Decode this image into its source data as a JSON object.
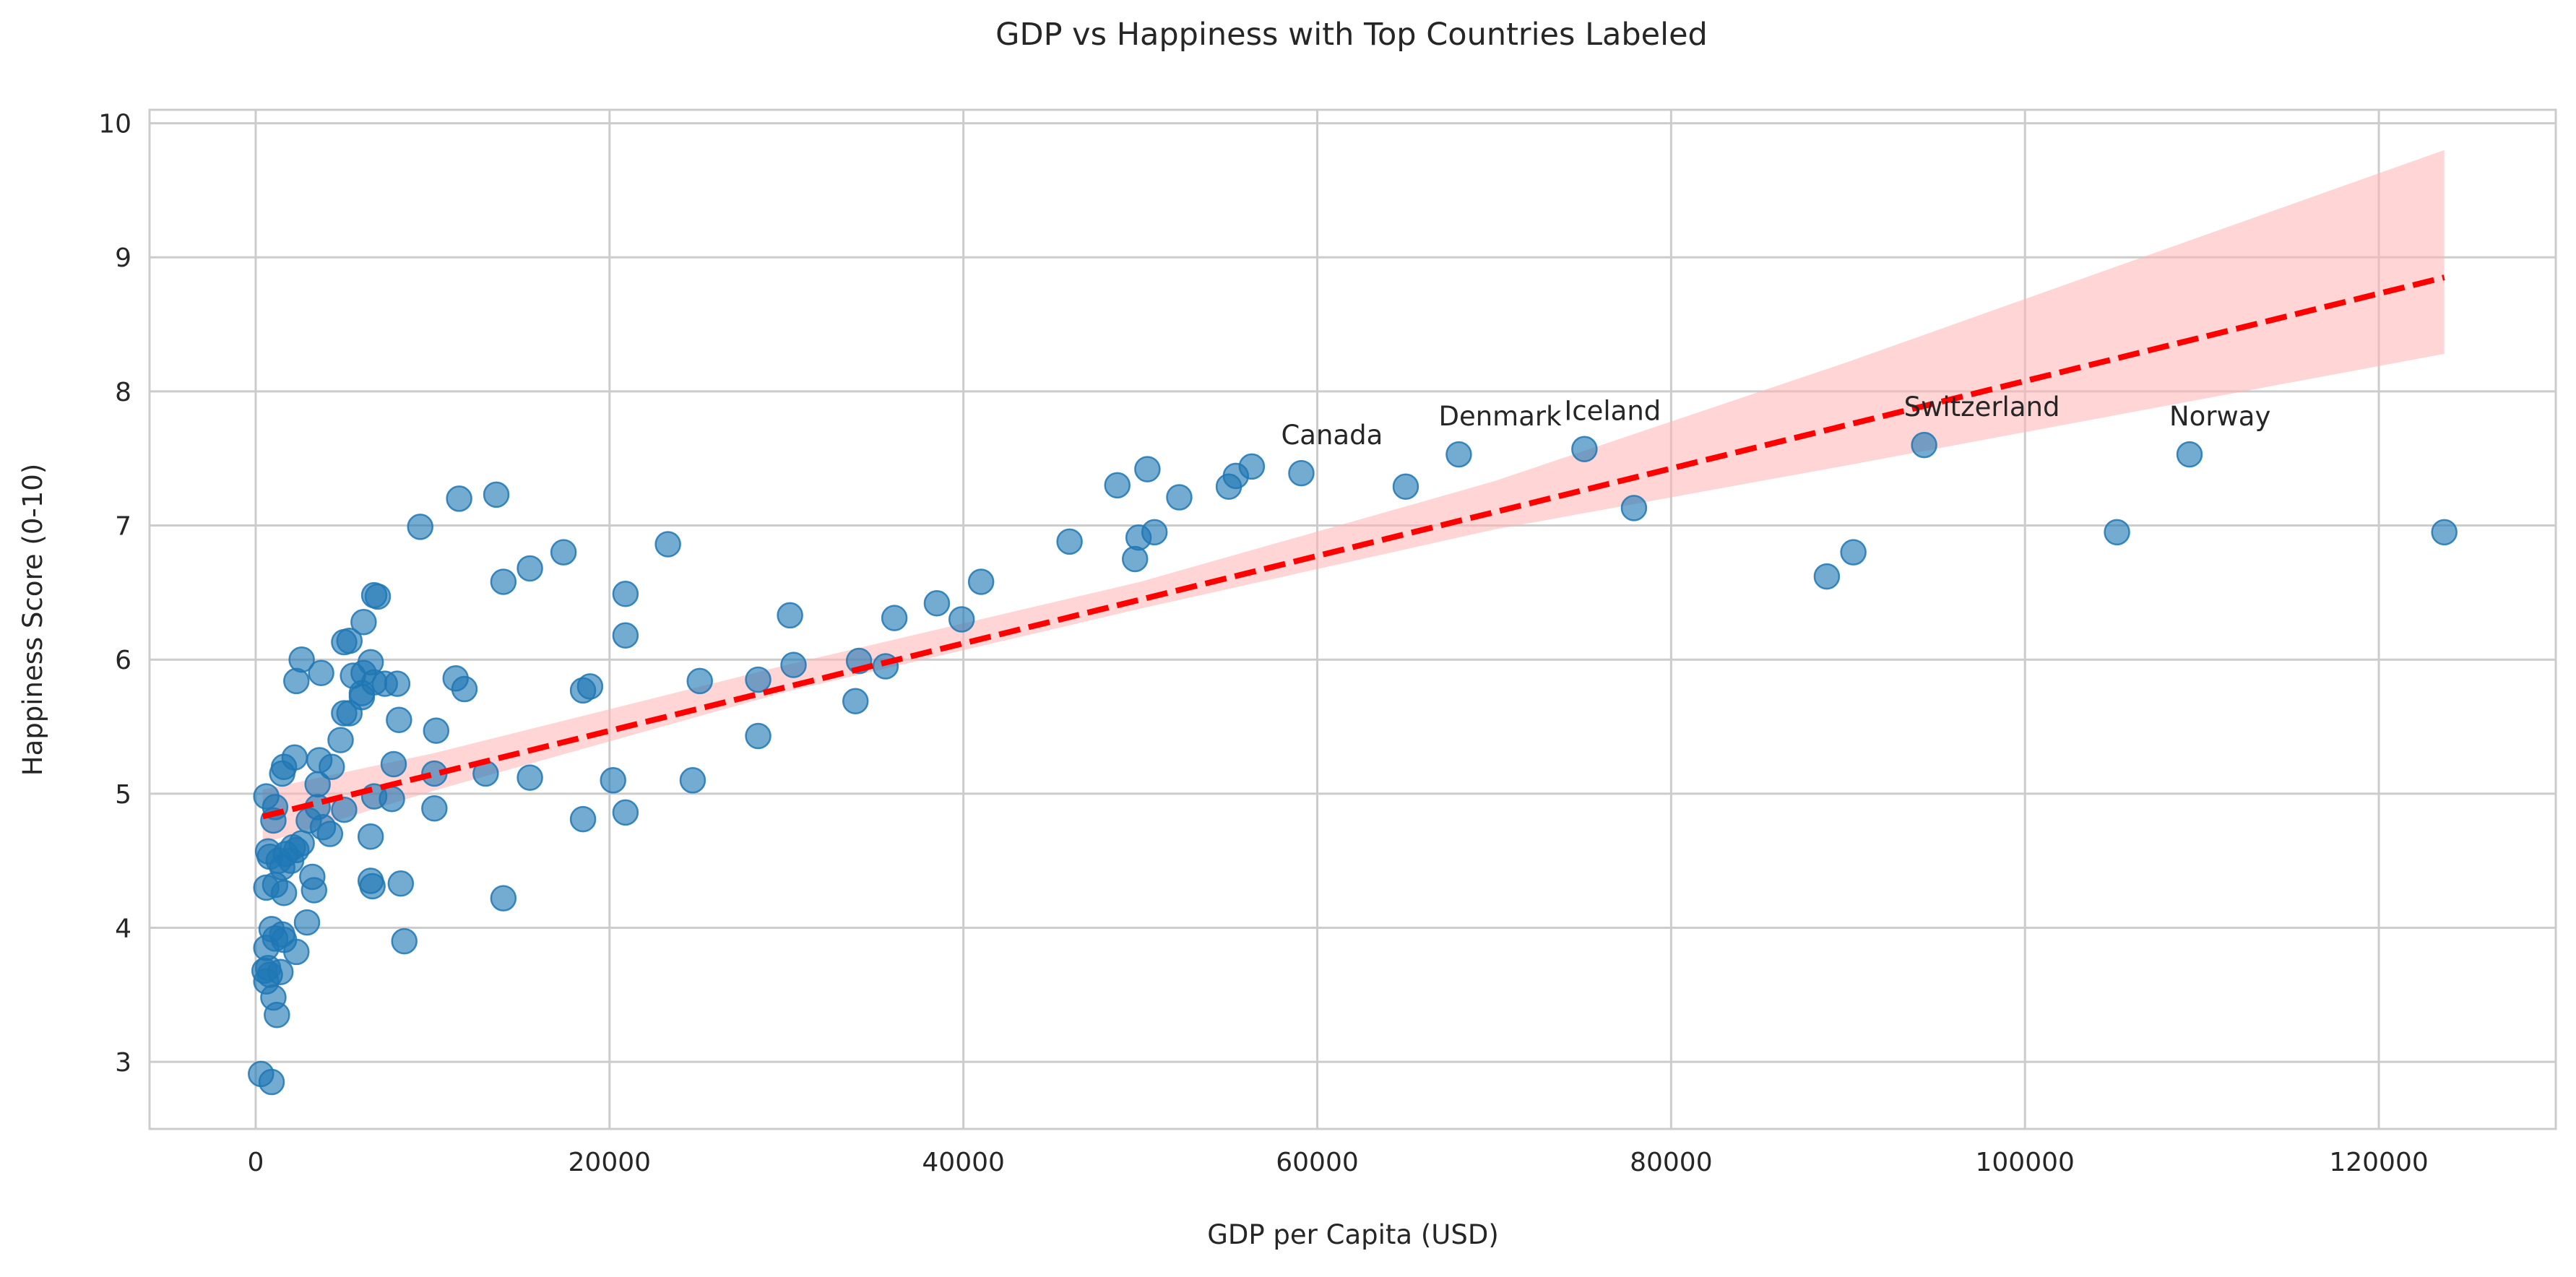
{
  "chart_data": {
    "type": "scatter",
    "title": "GDP vs Happiness with Top Countries Labeled",
    "xlabel": "GDP per Capita (USD)",
    "ylabel": "Happiness Score (0-10)",
    "xlim": [
      -6000,
      130000
    ],
    "ylim": [
      2.5,
      10.1
    ],
    "xticks": [
      0,
      20000,
      40000,
      60000,
      80000,
      100000,
      120000
    ],
    "xtick_labels": [
      "0",
      "20000",
      "40000",
      "60000",
      "80000",
      "100000",
      "120000"
    ],
    "yticks": [
      3,
      4,
      5,
      6,
      7,
      8,
      9,
      10
    ],
    "ytick_labels": [
      "3",
      "4",
      "5",
      "6",
      "7",
      "8",
      "9",
      "10"
    ],
    "grid": true,
    "colors": {
      "points": "#1f77b4",
      "trend": "#ff0000",
      "band": "#ffb3b3",
      "grid": "#cccccc",
      "axes": "#cccccc"
    },
    "series": [
      {
        "values": [
          [
            300,
            2.91
          ],
          [
            900,
            2.85
          ],
          [
            600,
            3.6
          ],
          [
            1200,
            3.35
          ],
          [
            1000,
            3.48
          ],
          [
            500,
            3.68
          ],
          [
            700,
            3.7
          ],
          [
            800,
            3.65
          ],
          [
            1400,
            3.67
          ],
          [
            2300,
            3.82
          ],
          [
            600,
            3.85
          ],
          [
            1100,
            3.92
          ],
          [
            900,
            3.99
          ],
          [
            1500,
            3.95
          ],
          [
            1600,
            3.91
          ],
          [
            2900,
            4.04
          ],
          [
            8400,
            3.9
          ],
          [
            600,
            4.3
          ],
          [
            1100,
            4.32
          ],
          [
            1600,
            4.26
          ],
          [
            3300,
            4.28
          ],
          [
            6500,
            4.35
          ],
          [
            6600,
            4.31
          ],
          [
            8200,
            4.33
          ],
          [
            14000,
            4.22
          ],
          [
            700,
            4.57
          ],
          [
            800,
            4.53
          ],
          [
            1300,
            4.5
          ],
          [
            1700,
            4.55
          ],
          [
            2000,
            4.5
          ],
          [
            2100,
            4.6
          ],
          [
            2300,
            4.58
          ],
          [
            2600,
            4.63
          ],
          [
            1500,
            4.45
          ],
          [
            1000,
            4.8
          ],
          [
            1100,
            4.9
          ],
          [
            3000,
            4.8
          ],
          [
            3200,
            4.38
          ],
          [
            3500,
            4.9
          ],
          [
            3800,
            4.75
          ],
          [
            4200,
            4.7
          ],
          [
            5000,
            4.88
          ],
          [
            6700,
            4.98
          ],
          [
            7700,
            4.96
          ],
          [
            6500,
            4.68
          ],
          [
            18500,
            4.81
          ],
          [
            20900,
            4.86
          ],
          [
            10100,
            4.89
          ],
          [
            600,
            4.98
          ],
          [
            1500,
            5.15
          ],
          [
            1600,
            5.2
          ],
          [
            2200,
            5.27
          ],
          [
            3600,
            5.25
          ],
          [
            3500,
            5.07
          ],
          [
            4300,
            5.2
          ],
          [
            4800,
            5.4
          ],
          [
            7800,
            5.22
          ],
          [
            10100,
            5.15
          ],
          [
            10200,
            5.47
          ],
          [
            13000,
            5.15
          ],
          [
            15500,
            5.12
          ],
          [
            20200,
            5.1
          ],
          [
            24700,
            5.1
          ],
          [
            5000,
            5.6
          ],
          [
            5300,
            5.6
          ],
          [
            5500,
            5.88
          ],
          [
            6000,
            5.75
          ],
          [
            6100,
            5.9
          ],
          [
            6000,
            5.72
          ],
          [
            6700,
            5.83
          ],
          [
            7300,
            5.82
          ],
          [
            8000,
            5.82
          ],
          [
            8100,
            5.55
          ],
          [
            2300,
            5.84
          ],
          [
            3700,
            5.9
          ],
          [
            11300,
            5.86
          ],
          [
            11800,
            5.78
          ],
          [
            18500,
            5.77
          ],
          [
            18900,
            5.8
          ],
          [
            25100,
            5.84
          ],
          [
            28400,
            5.43
          ],
          [
            28400,
            5.85
          ],
          [
            30400,
            5.96
          ],
          [
            33900,
            5.69
          ],
          [
            34100,
            5.99
          ],
          [
            35600,
            5.95
          ],
          [
            2600,
            6.0
          ],
          [
            6500,
            5.98
          ],
          [
            5000,
            6.13
          ],
          [
            5300,
            6.14
          ],
          [
            6100,
            6.28
          ],
          [
            20900,
            6.18
          ],
          [
            30200,
            6.33
          ],
          [
            36100,
            6.31
          ],
          [
            38500,
            6.42
          ],
          [
            39900,
            6.3
          ],
          [
            41000,
            6.58
          ],
          [
            14000,
            6.58
          ],
          [
            15500,
            6.68
          ],
          [
            20900,
            6.49
          ],
          [
            6700,
            6.48
          ],
          [
            6900,
            6.47
          ],
          [
            9300,
            6.99
          ],
          [
            11500,
            7.2
          ],
          [
            13600,
            7.23
          ],
          [
            17400,
            6.8
          ],
          [
            23300,
            6.86
          ],
          [
            46000,
            6.88
          ],
          [
            49700,
            6.75
          ],
          [
            49900,
            6.91
          ],
          [
            50800,
            6.95
          ],
          [
            48700,
            7.3
          ],
          [
            50400,
            7.42
          ],
          [
            52200,
            7.21
          ],
          [
            55000,
            7.29
          ],
          [
            55400,
            7.37
          ],
          [
            56300,
            7.44
          ],
          [
            59100,
            7.39
          ],
          [
            65000,
            7.29
          ],
          [
            68000,
            7.53
          ],
          [
            75100,
            7.57
          ],
          [
            77900,
            7.13
          ],
          [
            88800,
            6.62
          ],
          [
            90300,
            6.8
          ],
          [
            94300,
            7.6
          ],
          [
            105200,
            6.95
          ],
          [
            109300,
            7.53
          ],
          [
            123700,
            6.95
          ]
        ]
      }
    ],
    "trend": {
      "x_start": 400,
      "x_end": 123700,
      "y_start": 4.83,
      "y_end": 8.85
    },
    "confidence_band": {
      "lower": [
        [
          400,
          4.63
        ],
        [
          10000,
          5.02
        ],
        [
          30000,
          5.76
        ],
        [
          50000,
          6.38
        ],
        [
          70000,
          6.97
        ],
        [
          90000,
          7.45
        ],
        [
          123700,
          8.28
        ]
      ],
      "upper": [
        [
          400,
          5.03
        ],
        [
          10000,
          5.3
        ],
        [
          30000,
          5.96
        ],
        [
          50000,
          6.58
        ],
        [
          70000,
          7.33
        ],
        [
          90000,
          8.22
        ],
        [
          123700,
          9.8
        ]
      ]
    },
    "annotations": [
      {
        "text": "Canada",
        "x": 59100,
        "y": 7.39
      },
      {
        "text": "Denmark",
        "x": 68000,
        "y": 7.53
      },
      {
        "text": "Iceland",
        "x": 75100,
        "y": 7.57
      },
      {
        "text": "Switzerland",
        "x": 94300,
        "y": 7.6
      },
      {
        "text": "Norway",
        "x": 109300,
        "y": 7.53
      }
    ]
  }
}
